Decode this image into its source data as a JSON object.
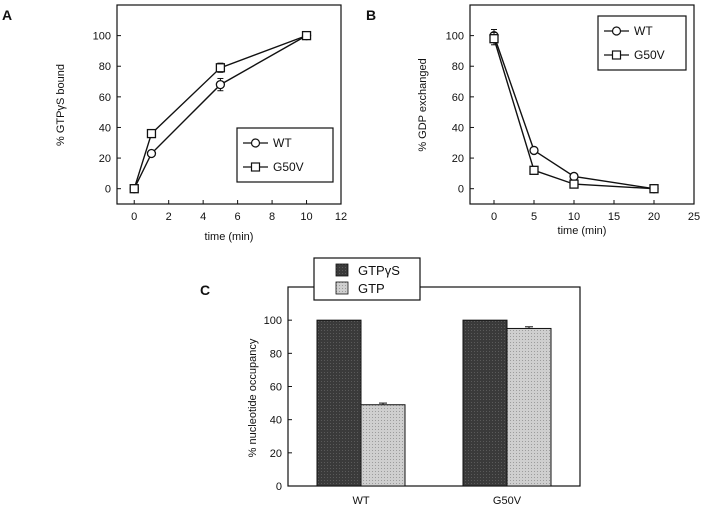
{
  "chart_data": [
    {
      "panel": "A",
      "type": "line",
      "xlabel": "time (min)",
      "ylabel": "% GTPγS bound",
      "xlim": [
        -1,
        12
      ],
      "ylim": [
        -10,
        120
      ],
      "xticks": [
        0,
        2,
        4,
        6,
        8,
        10,
        12
      ],
      "yticks": [
        0,
        20,
        40,
        60,
        80,
        100
      ],
      "legend_position": "bottom-right",
      "series": [
        {
          "name": "WT",
          "marker": "circle",
          "x": [
            0,
            1,
            5,
            10
          ],
          "y": [
            0,
            23,
            68,
            100
          ],
          "err": [
            0,
            2,
            4,
            2
          ]
        },
        {
          "name": "G50V",
          "marker": "square",
          "x": [
            0,
            1,
            5,
            10
          ],
          "y": [
            0,
            36,
            79,
            100
          ],
          "err": [
            0,
            2,
            3,
            2
          ]
        }
      ]
    },
    {
      "panel": "B",
      "type": "line",
      "xlabel": "time (min)",
      "ylabel": "% GDP exchanged",
      "xlim": [
        -3,
        25
      ],
      "ylim": [
        -10,
        120
      ],
      "xticks": [
        0,
        5,
        10,
        15,
        20,
        25
      ],
      "yticks": [
        0,
        20,
        40,
        60,
        80,
        100
      ],
      "legend_position": "top-right",
      "series": [
        {
          "name": "WT",
          "marker": "circle",
          "x": [
            0,
            5,
            10,
            20
          ],
          "y": [
            100,
            25,
            8,
            0
          ],
          "err": [
            4,
            2,
            1,
            0
          ]
        },
        {
          "name": "G50V",
          "marker": "square",
          "x": [
            0,
            5,
            10,
            20
          ],
          "y": [
            98,
            12,
            3,
            0
          ],
          "err": [
            4,
            2,
            1,
            0
          ]
        }
      ]
    },
    {
      "panel": "C",
      "type": "bar",
      "ylabel": "% nucleotide occupancy",
      "ylim": [
        0,
        120
      ],
      "yticks": [
        0,
        20,
        40,
        60,
        80,
        100
      ],
      "categories": [
        "WT",
        "G50V"
      ],
      "legend_position": "top-left",
      "series": [
        {
          "name": "GTPγS",
          "values": [
            100,
            100
          ],
          "err": [
            0,
            0
          ],
          "color": "#3a3a3a"
        },
        {
          "name": "GTP",
          "values": [
            49,
            95
          ],
          "err": [
            1,
            1
          ],
          "color": "#c8c8c8"
        }
      ]
    }
  ]
}
